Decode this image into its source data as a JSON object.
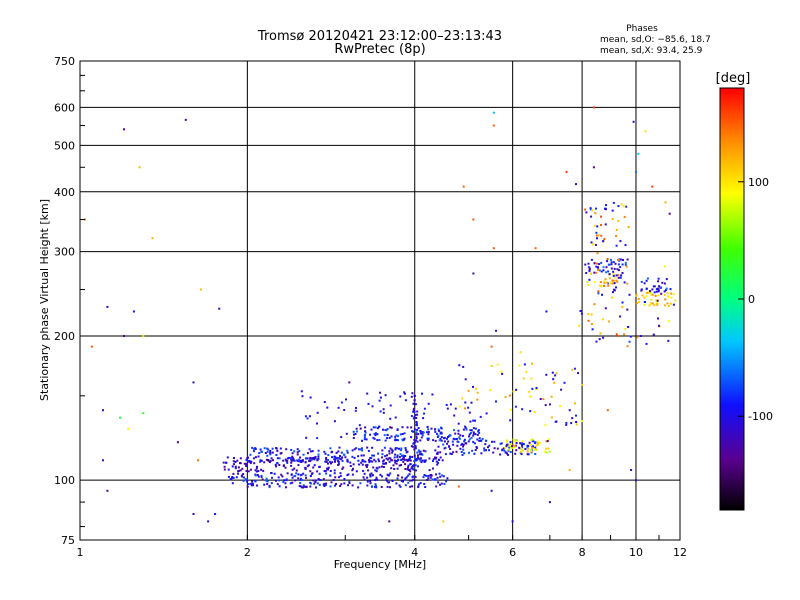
{
  "chart_data": {
    "type": "scatter",
    "title": "Tromsø 20120421 23:12:00–23:13:43",
    "subtitle": "RwPretec (8p)",
    "xlabel": "Frequency [MHz]",
    "ylabel": "Stationary phase Virtual Height [km]",
    "x_scale": "log",
    "y_scale": "log",
    "xlim": [
      1,
      12
    ],
    "ylim": [
      75,
      750
    ],
    "x_ticks": [
      1,
      2,
      4,
      6,
      8,
      10,
      12
    ],
    "y_ticks": [
      75,
      100,
      200,
      300,
      400,
      500,
      600,
      750
    ],
    "grid": true,
    "phases_box": {
      "title": "Phases",
      "line1": "mean, sd,O: −85.6, 18.7",
      "line2": "mean, sd,X:  93.4, 25.9"
    },
    "colorbar": {
      "label": "[deg]",
      "range": [
        -180,
        180
      ],
      "ticks": [
        100,
        0,
        -100
      ],
      "colormap": "rainbow (black → purple → blue → cyan → green → yellow → red)"
    },
    "traces": [
      {
        "name": "",
        "x_range": [
          1.8,
          4.5
        ],
        "height": 108,
        "phase": -110
      },
      {
        "name": "",
        "x_range": [
          1.85,
          4.6
        ],
        "height": 100,
        "phase": -95
      },
      {
        "name": "",
        "x_range": [
          2.0,
          4.2
        ],
        "height": 113,
        "phase": -95
      },
      {
        "name": "",
        "x_range": [
          3.1,
          5.3
        ],
        "height": 125,
        "phase": -90
      },
      {
        "name": "",
        "x_range": [
          4.3,
          6.6
        ],
        "height": 117,
        "phase": -95
      },
      {
        "name": "",
        "x_range": [
          5.8,
          7.0
        ],
        "height": 118,
        "phase": 100
      },
      {
        "name": "",
        "x_range": [
          8.2,
          9.6
        ],
        "height": 280,
        "phase": -90
      },
      {
        "name": "",
        "x_range": [
          8.6,
          9.3
        ],
        "height": 260,
        "phase": 120
      },
      {
        "name": "",
        "x_range": [
          10.0,
          11.8
        ],
        "height": 240,
        "phase": 110
      },
      {
        "name": "",
        "x_range": [
          10.2,
          11.5
        ],
        "height": 255,
        "phase": -90
      }
    ],
    "sparse_points": [
      {
        "x": 1.02,
        "y": 350,
        "phase": 140
      },
      {
        "x": 1.2,
        "y": 540,
        "phase": -120
      },
      {
        "x": 1.55,
        "y": 565,
        "phase": -130
      },
      {
        "x": 1.28,
        "y": 450,
        "phase": 120
      },
      {
        "x": 1.35,
        "y": 320,
        "phase": 120
      },
      {
        "x": 1.3,
        "y": 200,
        "phase": 100
      },
      {
        "x": 1.25,
        "y": 225,
        "phase": -90
      },
      {
        "x": 1.12,
        "y": 230,
        "phase": -110
      },
      {
        "x": 1.05,
        "y": 190,
        "phase": 150
      },
      {
        "x": 1.2,
        "y": 200,
        "phase": -130
      },
      {
        "x": 1.1,
        "y": 140,
        "phase": -120
      },
      {
        "x": 1.18,
        "y": 135,
        "phase": 20
      },
      {
        "x": 1.3,
        "y": 138,
        "phase": 30
      },
      {
        "x": 1.22,
        "y": 128,
        "phase": 90
      },
      {
        "x": 1.1,
        "y": 110,
        "phase": -120
      },
      {
        "x": 1.12,
        "y": 95,
        "phase": -130
      },
      {
        "x": 1.6,
        "y": 160,
        "phase": -110
      },
      {
        "x": 1.63,
        "y": 110,
        "phase": 140
      },
      {
        "x": 1.65,
        "y": 250,
        "phase": 120
      },
      {
        "x": 1.78,
        "y": 228,
        "phase": -120
      },
      {
        "x": 1.5,
        "y": 120,
        "phase": -140
      },
      {
        "x": 1.6,
        "y": 85,
        "phase": -120
      },
      {
        "x": 1.7,
        "y": 82,
        "phase": -100
      },
      {
        "x": 1.75,
        "y": 85,
        "phase": -90
      },
      {
        "x": 3.05,
        "y": 160,
        "phase": -120
      },
      {
        "x": 4.0,
        "y": 150,
        "phase": -100
      },
      {
        "x": 4.9,
        "y": 410,
        "phase": 150
      },
      {
        "x": 5.1,
        "y": 350,
        "phase": 150
      },
      {
        "x": 5.1,
        "y": 270,
        "phase": -110
      },
      {
        "x": 5.55,
        "y": 585,
        "phase": -40
      },
      {
        "x": 5.55,
        "y": 550,
        "phase": 150
      },
      {
        "x": 5.55,
        "y": 305,
        "phase": 150
      },
      {
        "x": 6.6,
        "y": 305,
        "phase": 150
      },
      {
        "x": 6.9,
        "y": 225,
        "phase": -90
      },
      {
        "x": 7.5,
        "y": 440,
        "phase": 160
      },
      {
        "x": 7.8,
        "y": 415,
        "phase": -110
      },
      {
        "x": 8.4,
        "y": 600,
        "phase": 160
      },
      {
        "x": 8.4,
        "y": 450,
        "phase": -130
      },
      {
        "x": 9.9,
        "y": 560,
        "phase": -120
      },
      {
        "x": 10.4,
        "y": 535,
        "phase": 100
      },
      {
        "x": 10.1,
        "y": 480,
        "phase": -40
      },
      {
        "x": 10.0,
        "y": 440,
        "phase": -60
      },
      {
        "x": 10.7,
        "y": 410,
        "phase": 160
      },
      {
        "x": 11.3,
        "y": 380,
        "phase": 120
      },
      {
        "x": 11.5,
        "y": 360,
        "phase": -130
      },
      {
        "x": 5.5,
        "y": 95,
        "phase": -90
      },
      {
        "x": 4.8,
        "y": 97,
        "phase": 150
      },
      {
        "x": 6.0,
        "y": 82,
        "phase": -100
      },
      {
        "x": 7.0,
        "y": 90,
        "phase": -120
      },
      {
        "x": 3.6,
        "y": 82,
        "phase": -130
      },
      {
        "x": 4.5,
        "y": 82,
        "phase": 110
      },
      {
        "x": 9.8,
        "y": 105,
        "phase": -120
      },
      {
        "x": 10.0,
        "y": 100,
        "phase": -110
      },
      {
        "x": 7.6,
        "y": 105,
        "phase": 120
      },
      {
        "x": 8.9,
        "y": 140,
        "phase": 150
      },
      {
        "x": 7.6,
        "y": 140,
        "phase": -100
      },
      {
        "x": 6.2,
        "y": 185,
        "phase": 100
      },
      {
        "x": 5.5,
        "y": 190,
        "phase": 150
      },
      {
        "x": 5.6,
        "y": 205,
        "phase": -110
      },
      {
        "x": 6.5,
        "y": 175,
        "phase": 120
      },
      {
        "x": 10.2,
        "y": 200,
        "phase": -110
      },
      {
        "x": 11.0,
        "y": 210,
        "phase": -120
      },
      {
        "x": 7.9,
        "y": 210,
        "phase": 100
      },
      {
        "x": 9.3,
        "y": 200,
        "phase": 150
      }
    ]
  }
}
